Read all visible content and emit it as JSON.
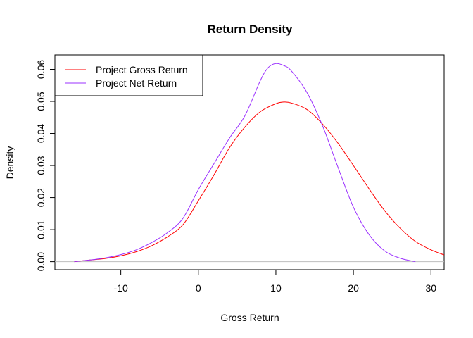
{
  "chart_data": {
    "type": "line",
    "title": "Return Density",
    "xlabel": "Gross Return",
    "ylabel": "Density",
    "xlim": [
      -18.5,
      31.7
    ],
    "ylim": [
      -0.0025,
      0.0645
    ],
    "x_ticks": [
      -10,
      0,
      10,
      20,
      30
    ],
    "x_tick_labels": [
      "-10",
      "0",
      "10",
      "20",
      "30"
    ],
    "y_ticks": [
      0.0,
      0.01,
      0.02,
      0.03,
      0.04,
      0.05,
      0.06
    ],
    "y_tick_labels": [
      "0.00",
      "0.01",
      "0.02",
      "0.03",
      "0.04",
      "0.05",
      "0.06"
    ],
    "baseline": 0,
    "legend_position": "top-left",
    "series": [
      {
        "name": "Project Gross Return",
        "color": "#ff0000",
        "x": [
          -16,
          -14,
          -12,
          -10,
          -8,
          -6,
          -4,
          -2,
          0,
          2,
          4,
          6,
          8,
          10,
          11,
          12,
          14,
          16,
          18,
          20,
          22,
          24,
          26,
          28,
          30,
          31.7
        ],
        "y": [
          0.0,
          0.0005,
          0.001,
          0.0018,
          0.0031,
          0.005,
          0.0077,
          0.0115,
          0.019,
          0.027,
          0.0355,
          0.042,
          0.0468,
          0.0493,
          0.0498,
          0.0495,
          0.0475,
          0.043,
          0.037,
          0.03,
          0.0228,
          0.016,
          0.0105,
          0.0063,
          0.0037,
          0.0021
        ]
      },
      {
        "name": "Project Net Return",
        "color": "#9b30ff",
        "x": [
          -16,
          -14,
          -12,
          -10,
          -8,
          -6,
          -4,
          -2,
          0,
          2,
          4,
          6,
          8,
          9,
          10,
          11,
          12,
          14,
          16,
          18,
          20,
          22,
          24,
          26,
          28
        ],
        "y": [
          0.0,
          0.0005,
          0.0012,
          0.0022,
          0.0037,
          0.006,
          0.009,
          0.0135,
          0.0225,
          0.0305,
          0.0385,
          0.0455,
          0.0565,
          0.0605,
          0.0618,
          0.0612,
          0.0595,
          0.0528,
          0.0425,
          0.0295,
          0.017,
          0.0085,
          0.0034,
          0.0011,
          0.0
        ]
      }
    ]
  }
}
